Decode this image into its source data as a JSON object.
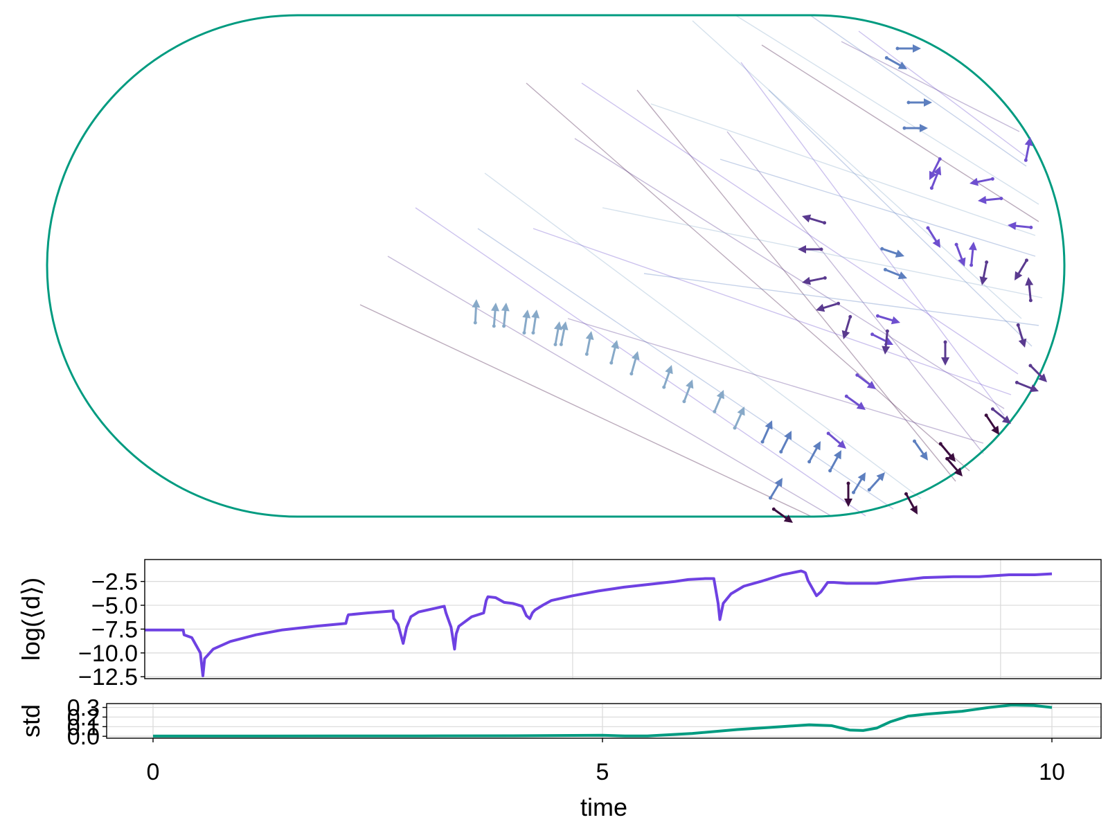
{
  "chart_data": [
    {
      "type": "billiard",
      "billiard_shape": "stadium",
      "boundary_color": "#009b80",
      "particle_colors": [
        "#87a9c8",
        "#5d7fbf",
        "#6e4fcf",
        "#5a3a8f",
        "#3b0d3f"
      ],
      "arrowheads": [
        [
          688,
          432,
          0.05,
          -1
        ],
        [
          716,
          437,
          0.08,
          -1
        ],
        [
          731,
          437,
          0.1,
          -1
        ],
        [
          762,
          447,
          0.15,
          -1
        ],
        [
          775,
          447,
          0.15,
          -1
        ],
        [
          808,
          464,
          0.18,
          -1
        ],
        [
          817,
          464,
          0.2,
          -1
        ],
        [
          854,
          478,
          0.2,
          -1
        ],
        [
          891,
          491,
          0.25,
          -1
        ],
        [
          921,
          507,
          0.28,
          -1
        ],
        [
          970,
          527,
          0.35,
          -1
        ],
        [
          1000,
          548,
          0.38,
          -1
        ],
        [
          1045,
          563,
          0.42,
          -1
        ],
        [
          1075,
          587,
          0.45,
          -1
        ],
        [
          1115,
          607,
          0.45,
          -1
        ],
        [
          1143,
          622,
          0.5,
          -1
        ],
        [
          1185,
          637,
          0.55,
          -1
        ],
        [
          1215,
          650,
          0.55,
          -1
        ],
        [
          1250,
          682,
          0.6,
          -1
        ],
        [
          1340,
          665,
          0.7,
          1
        ],
        [
          1130,
          690,
          0.6,
          -1
        ],
        [
          1278,
          682,
          0.9,
          -1
        ],
        [
          1330,
          70,
          1,
          0
        ],
        [
          1310,
          100,
          0.9,
          0.5
        ],
        [
          1346,
          148,
          1,
          0
        ],
        [
          1340,
          185,
          1,
          0
        ],
        [
          1306,
          370,
          0.9,
          0.3
        ],
        [
          1310,
          402,
          1,
          0.4
        ],
        [
          1300,
          466,
          1,
          0.3
        ],
        [
          1290,
          498,
          0.8,
          0.4
        ],
        [
          1265,
          562,
          0.8,
          0.6
        ],
        [
          1250,
          592,
          0.7,
          0.5
        ],
        [
          1222,
          648,
          0.7,
          0.6
        ],
        [
          1488,
          198,
          0.2,
          -1
        ],
        [
          1358,
          240,
          0.4,
          -1
        ],
        [
          1342,
          260,
          -0.5,
          1
        ],
        [
          1400,
          265,
          -1,
          0.2
        ],
        [
          1412,
          290,
          -1,
          0.1
        ],
        [
          1455,
          325,
          -1,
          -0.1
        ],
        [
          1406,
          349,
          0.1,
          -1
        ],
        [
          1358,
          358,
          0.5,
          0.8
        ],
        [
          1393,
          385,
          0.3,
          0.8
        ],
        [
          1418,
          412,
          -0.2,
          1
        ],
        [
          1465,
          405,
          -0.6,
          1
        ],
        [
          1485,
          400,
          -0.1,
          -1
        ],
        [
          1158,
          312,
          -1,
          -0.3
        ],
        [
          1152,
          360,
          -1,
          0
        ],
        [
          1158,
          408,
          -1,
          0.2
        ],
        [
          1178,
          448,
          -1,
          0.3
        ],
        [
          1218,
          490,
          -0.3,
          1
        ],
        [
          1278,
          512,
          -0.1,
          1
        ],
        [
          1365,
          528,
          0,
          1
        ],
        [
          1480,
          502,
          0.3,
          1
        ],
        [
          1500,
          565,
          1,
          0.4
        ],
        [
          1512,
          552,
          1,
          1
        ],
        [
          1460,
          612,
          1,
          0.8
        ],
        [
          1443,
          628,
          0.6,
          0.9
        ],
        [
          1390,
          688,
          0.7,
          0.8
        ],
        [
          1325,
          743,
          0.5,
          0.9
        ],
        [
          1380,
          667,
          0.5,
          0.6
        ],
        [
          1145,
          755,
          0.7,
          0.5
        ],
        [
          1225,
          732,
          0,
          1
        ]
      ],
      "trajectory_lines": [
        [
          1500,
          295,
          1062,
          22
        ],
        [
          1482,
          240,
          1170,
          22
        ],
        [
          1480,
          225,
          1240,
          45
        ],
        [
          1472,
          190,
          1215,
          60
        ],
        [
          1500,
          320,
          1100,
          65
        ],
        [
          1475,
          460,
          1000,
          30
        ],
        [
          1490,
          500,
          1110,
          130
        ],
        [
          1450,
          600,
          1070,
          90
        ],
        [
          1420,
          655,
          1050,
          190
        ],
        [
          1380,
          695,
          920,
          130
        ],
        [
          1495,
          340,
          940,
          150
        ],
        [
          1495,
          370,
          1040,
          230
        ],
        [
          1470,
          540,
          840,
          120
        ],
        [
          1450,
          590,
          830,
          200
        ],
        [
          1400,
          680,
          760,
          120
        ],
        [
          1330,
          720,
          700,
          250
        ],
        [
          1290,
          735,
          690,
          330
        ],
        [
          1250,
          745,
          600,
          300
        ],
        [
          1200,
          745,
          560,
          370
        ],
        [
          1170,
          745,
          520,
          440
        ],
        [
          1505,
          430,
          870,
          300
        ],
        [
          1500,
          470,
          930,
          395
        ],
        [
          1460,
          570,
          770,
          330
        ],
        [
          1420,
          640,
          820,
          460
        ]
      ]
    },
    {
      "type": "line",
      "ylabel": "log(⟨d⟩)",
      "ytick_labels": [
        "−2.5",
        "−5.0",
        "−7.5",
        "−10.0",
        "−12.5"
      ],
      "yticks": [
        -2.5,
        -5.0,
        -7.5,
        -10.0,
        -12.5
      ],
      "xticks": [
        0,
        5,
        10
      ],
      "grid": true,
      "xlim": [
        -0.5,
        10.5
      ],
      "ylim": [
        -12.7,
        -0.2
      ],
      "color": "#6e41e2",
      "series": [
        {
          "x": [
            0.4,
            0.85,
            0.86,
            0.95,
            1.05,
            1.08,
            1.1,
            1.2,
            1.4,
            1.7,
            2.0,
            2.4,
            2.75,
            2.77,
            2.78,
            3.0,
            3.3,
            3.31,
            3.32,
            3.36,
            3.42,
            3.46,
            3.51,
            3.6,
            3.8,
            3.9,
            3.92,
            3.98,
            4.02,
            4.04,
            4.07,
            4.22,
            4.36,
            4.39,
            4.41,
            4.5,
            4.6,
            4.7,
            4.81,
            4.86,
            4.9,
            4.93,
            4.96,
            5.05,
            5.15,
            5.4,
            5.7,
            6.0,
            6.3,
            6.6,
            6.75,
            6.95,
            7.05,
            7.1,
            7.12,
            7.16,
            7.25,
            7.4,
            7.6,
            7.85,
            8.07,
            8.1,
            8.12,
            8.15,
            8.25,
            8.3,
            8.38,
            8.42,
            8.45,
            8.6,
            8.75,
            8.95,
            9.2,
            9.5,
            9.85,
            10.15,
            10.5,
            10.8,
            11.0
          ],
          "y": [
            -7.6,
            -7.6,
            -8.1,
            -8.4,
            -10.0,
            -12.4,
            -10.6,
            -9.6,
            -8.8,
            -8.1,
            -7.6,
            -7.2,
            -6.9,
            -6.2,
            -6.0,
            -5.8,
            -5.6,
            -6.4,
            -6.5,
            -7.0,
            -9.0,
            -7.3,
            -6.2,
            -5.7,
            -5.3,
            -5.1,
            -5.8,
            -7.3,
            -9.6,
            -8.0,
            -7.2,
            -6.2,
            -5.8,
            -4.5,
            -4.1,
            -4.2,
            -4.7,
            -4.8,
            -5.1,
            -6.1,
            -6.4,
            -5.8,
            -5.5,
            -5.0,
            -4.5,
            -4.0,
            -3.5,
            -3.1,
            -2.8,
            -2.5,
            -2.3,
            -2.2,
            -2.2,
            -4.8,
            -6.5,
            -4.8,
            -3.8,
            -3.0,
            -2.5,
            -1.8,
            -1.4,
            -1.5,
            -1.6,
            -2.4,
            -4.0,
            -3.6,
            -2.6,
            -2.6,
            -2.6,
            -2.7,
            -2.7,
            -2.7,
            -2.4,
            -2.1,
            -2.0,
            -2.0,
            -1.8,
            -1.8,
            -1.7
          ]
        }
      ]
    },
    {
      "type": "line",
      "ylabel": "std",
      "xlabel": "time",
      "ytick_labels": [
        "0.3",
        "0.2",
        "0.1",
        "0.0"
      ],
      "yticks": [
        0.3,
        0.2,
        0.1,
        0.0
      ],
      "xtick_labels": [
        "0",
        "5",
        "10"
      ],
      "xticks": [
        0,
        5,
        10
      ],
      "grid": true,
      "xlim": [
        -0.5,
        10.5
      ],
      "ylim": [
        -0.02,
        0.34
      ],
      "color": "#009b80",
      "series": [
        {
          "x": [
            0,
            1,
            2,
            3,
            4,
            5,
            5.25,
            5.5,
            6.0,
            6.5,
            7.0,
            7.3,
            7.55,
            7.75,
            7.9,
            8.05,
            8.2,
            8.4,
            8.6,
            9.0,
            9.3,
            9.55,
            9.8,
            10.0
          ],
          "y": [
            0.002,
            0.002,
            0.003,
            0.004,
            0.005,
            0.01,
            0.003,
            0.003,
            0.03,
            0.07,
            0.1,
            0.12,
            0.11,
            0.065,
            0.06,
            0.085,
            0.15,
            0.21,
            0.23,
            0.26,
            0.3,
            0.325,
            0.32,
            0.3
          ]
        }
      ]
    }
  ],
  "axes": {
    "x_tick_labels": [
      "0",
      "5",
      "10"
    ],
    "top_ylabel": "log(⟨d⟩)",
    "bottom_ylabel": "std",
    "xlabel": "time"
  }
}
